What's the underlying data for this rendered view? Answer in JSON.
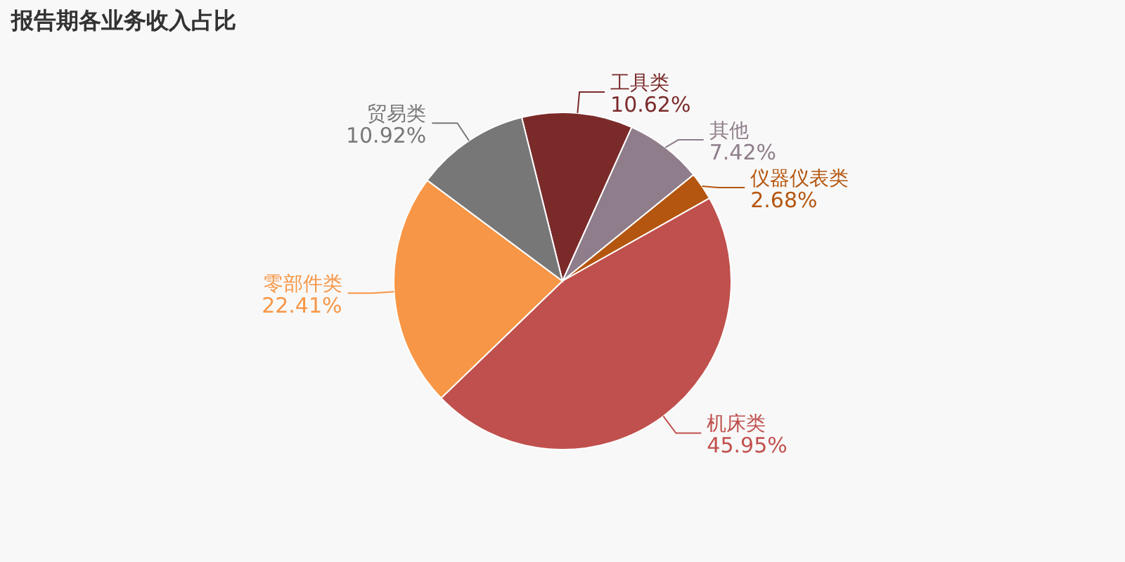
{
  "chart_data": {
    "type": "pie",
    "title": "报告期各业务收入占比",
    "categories": [
      "工具类",
      "其他",
      "仪器仪表类",
      "机床类",
      "零部件类",
      "贸易类"
    ],
    "values": [
      10.62,
      7.42,
      2.68,
      45.95,
      22.41,
      10.92
    ],
    "colors": [
      "#7b2a2a",
      "#8f7d8b",
      "#b4560f",
      "#c0504d",
      "#f79646",
      "#777777"
    ],
    "value_labels": [
      "10.62%",
      "7.42%",
      "2.68%",
      "45.95%",
      "22.41%",
      "10.92%"
    ]
  }
}
